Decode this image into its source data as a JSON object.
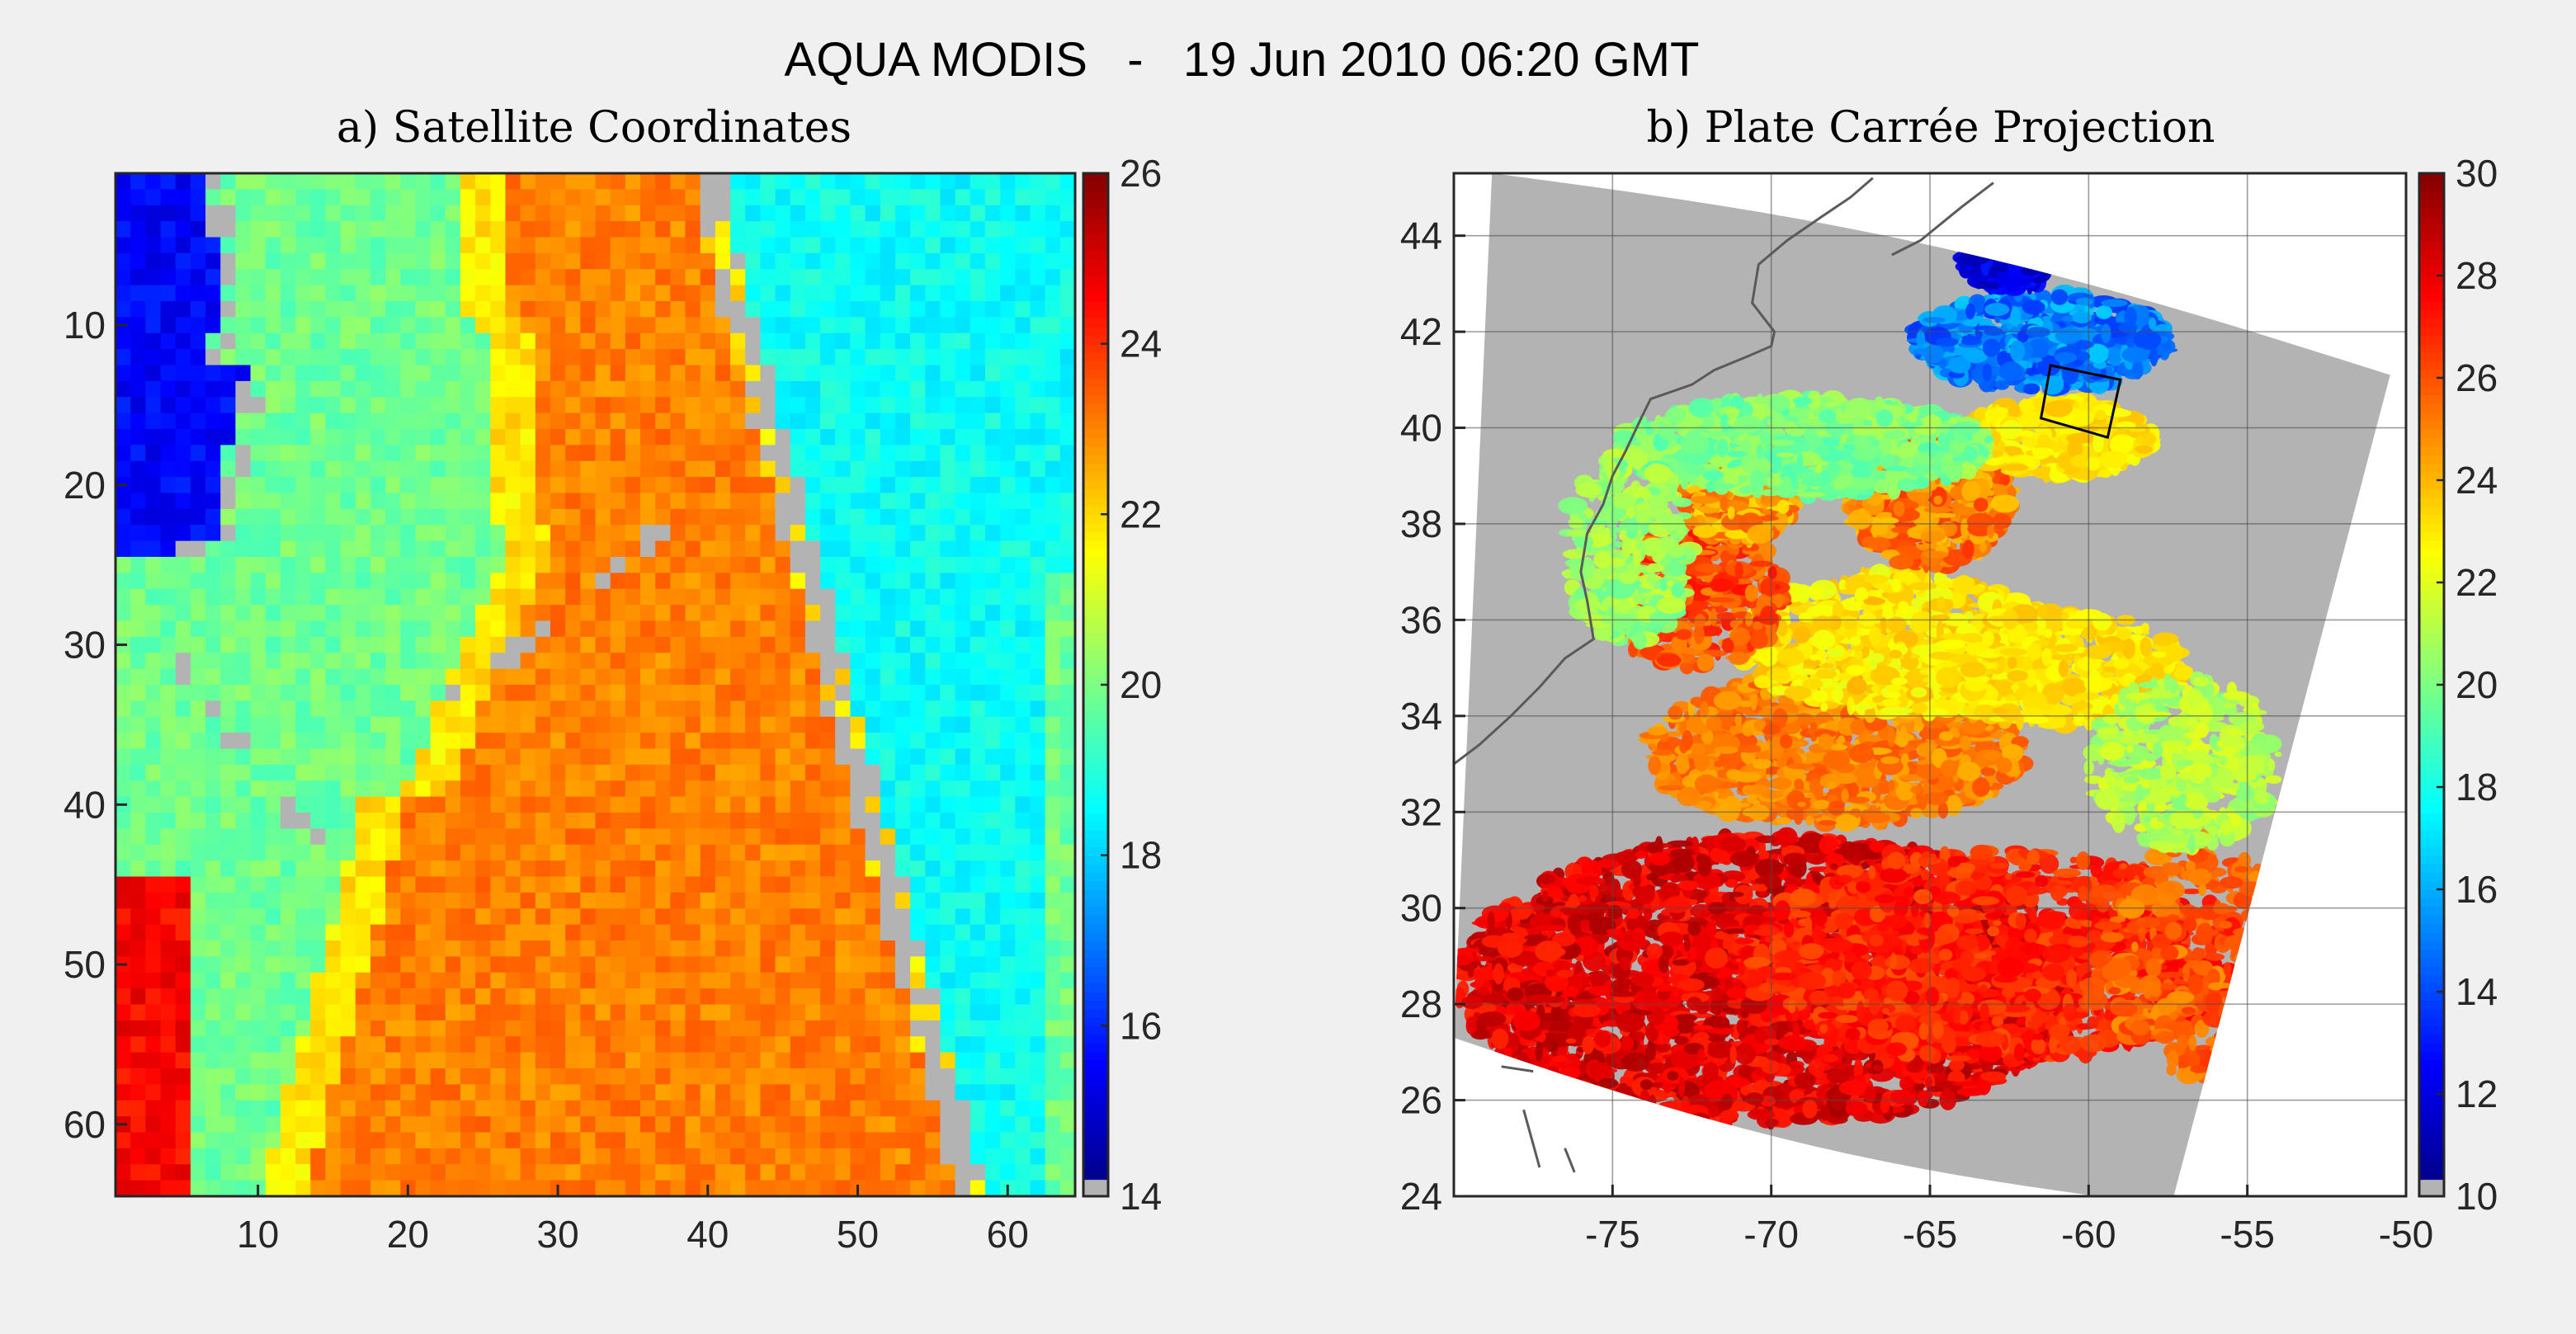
{
  "figure": {
    "title": "AQUA MODIS   -   19 Jun 2010 06:20 GMT"
  },
  "colors": {
    "background": "#f0f0f0",
    "land_mask": "#b3b3b3",
    "axes_frame": "#262626",
    "colormap": "jet",
    "box_outline": "#000000",
    "coastline": "#5a5a5a"
  },
  "chart_data": [
    {
      "type": "heatmap",
      "title": "a) Satellite Coordinates",
      "xlabel": "",
      "ylabel": "",
      "xlim": [
        0.5,
        64.5
      ],
      "ylim": [
        0.5,
        64.5
      ],
      "y_reversed": true,
      "xticks": [
        10,
        20,
        30,
        40,
        50,
        60
      ],
      "yticks": [
        10,
        20,
        30,
        40,
        50,
        60
      ],
      "grid": false,
      "colorbar": {
        "ticks": [
          14,
          16,
          18,
          20,
          22,
          24,
          26
        ],
        "range": [
          14,
          26
        ],
        "lowest_bin_color": "#b3b3b3"
      },
      "grid_size": [
        64,
        64
      ],
      "fronts_description_values": {
        "cold_shelf_water_nw": 15.5,
        "slope_water": 19.8,
        "gulf_stream_edge": 21.8,
        "gulf_stream_core": 23.0,
        "warm_eddy_sw": 24.5,
        "cold_water_east": 18.6
      }
    },
    {
      "type": "heatmap",
      "title": "b) Plate Carrée Projection",
      "xlabel": "",
      "ylabel": "",
      "xlim": [
        -80,
        -50
      ],
      "ylim": [
        24,
        45.3
      ],
      "xticks": [
        -75,
        -70,
        -65,
        -60,
        -55,
        -50
      ],
      "yticks": [
        24,
        26,
        28,
        30,
        32,
        34,
        36,
        38,
        40,
        42,
        44
      ],
      "grid": true,
      "colorbar": {
        "ticks": [
          10,
          12,
          14,
          16,
          18,
          20,
          22,
          24,
          26,
          28,
          30
        ],
        "range": [
          10,
          30
        ],
        "lowest_bin_color": "#b3b3b3"
      },
      "swath_corners_lonlat": [
        [
          -78.8,
          45.3
        ],
        [
          -50.5,
          41.1
        ],
        [
          -57.4,
          23.8
        ],
        [
          -80.0,
          27.3
        ]
      ],
      "subset_box_lonlat": [
        [
          -61.2,
          41.3
        ],
        [
          -59.0,
          41.0
        ],
        [
          -59.4,
          39.8
        ],
        [
          -61.5,
          40.2
        ]
      ],
      "sst_regions": {
        "cold_north_west": 15,
        "slope_sea": 20,
        "gulf_stream_north": 23,
        "warm_ring": 25,
        "sargasso_south": 28
      }
    }
  ]
}
